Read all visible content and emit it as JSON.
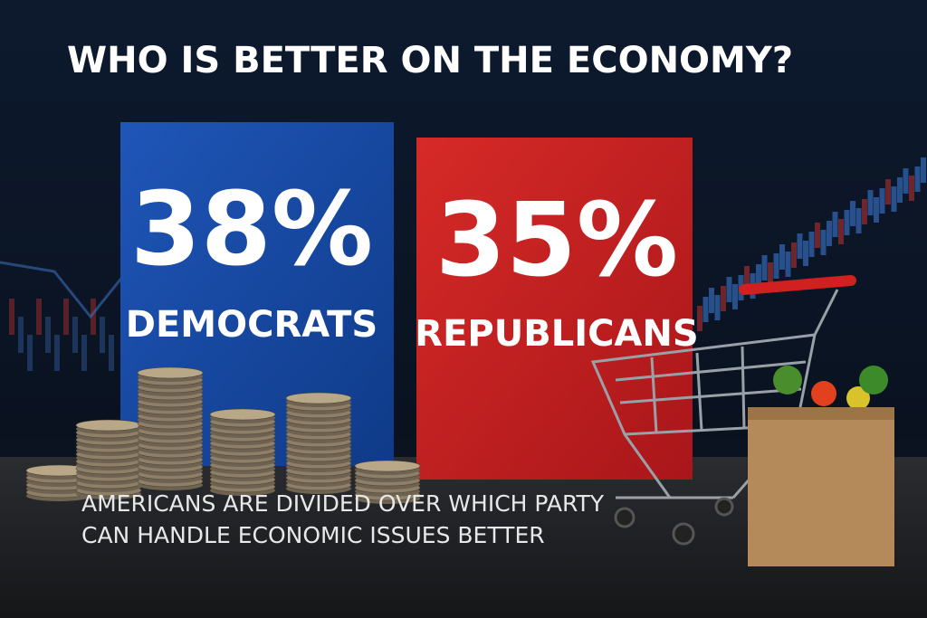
{
  "header": {
    "title": "WHO IS BETTER ON THE ECONOMY?"
  },
  "panels": [
    {
      "value": "38%",
      "label": "DEMOCRATS"
    },
    {
      "value": "35%",
      "label": "REPUBLICANS"
    }
  ],
  "caption": {
    "lines": [
      "AMERICANS ARE DIVIDED OVER WHICH PARTY",
      "CAN HANDLE ECONOMIC ISSUES BETTER"
    ]
  }
}
